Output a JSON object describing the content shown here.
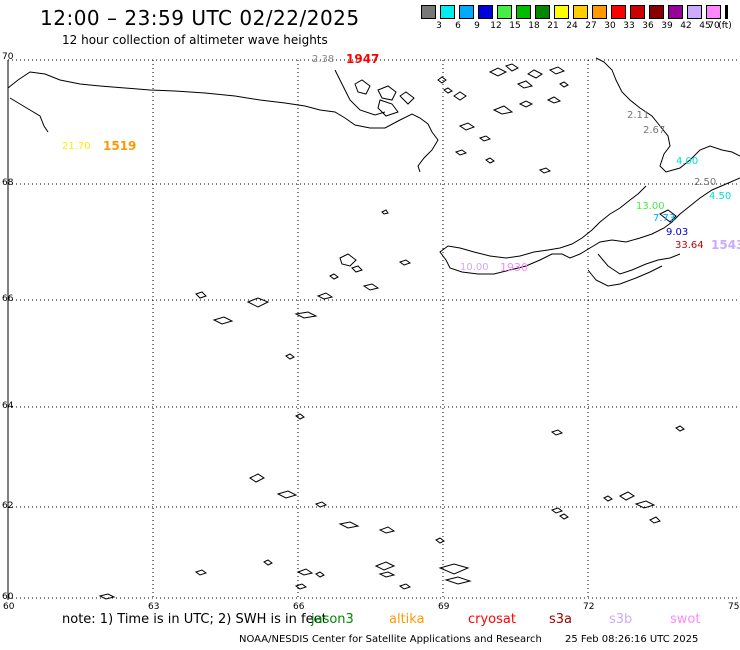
{
  "header": {
    "title": "12:00 – 23:59 UTC 02/22/2025",
    "subtitle": "12 hour collection of altimeter wave heights"
  },
  "legend": {
    "unit": "(ft)",
    "colors": [
      "#777777",
      "#00eeee",
      "#00aaff",
      "#0000dd",
      "#44ee44",
      "#00bb00",
      "#008800",
      "#ffff00",
      "#ffcc00",
      "#ff9900",
      "#ff0000",
      "#cc0000",
      "#880000",
      "#990099",
      "#ccaaff",
      "#ff88ff",
      "#000000"
    ],
    "labels": [
      "3",
      "6",
      "9",
      "12",
      "15",
      "18",
      "21",
      "24",
      "27",
      "30",
      "33",
      "36",
      "39",
      "42",
      "45",
      "70"
    ]
  },
  "axes": {
    "y_labels": [
      "70",
      "68",
      "66",
      "64",
      "62",
      "60"
    ],
    "x_labels": [
      "60",
      "63",
      "66",
      "69",
      "72",
      "75"
    ],
    "lat_range": [
      60,
      70
    ],
    "lon_range": [
      60,
      75
    ]
  },
  "wave_heights": [
    {
      "text": "2.38",
      "color": "#888888"
    },
    {
      "text": "21.70",
      "color": "#ffff00"
    },
    {
      "text": "2.11",
      "color": "#777777"
    },
    {
      "text": "2.67",
      "color": "#777777"
    },
    {
      "text": "4.00",
      "color": "#00dddd"
    },
    {
      "text": "2.50",
      "color": "#777777"
    },
    {
      "text": "4.50",
      "color": "#00dddd"
    },
    {
      "text": "13.00",
      "color": "#44ee44"
    },
    {
      "text": "7.73",
      "color": "#00aaff"
    },
    {
      "text": "9.03",
      "color": "#0000cc"
    },
    {
      "text": "33.64",
      "color": "#cc0000"
    },
    {
      "text": "10.00",
      "color": "#ccaaff"
    }
  ],
  "pass_times": [
    {
      "text": "1947",
      "color": "#ff0000"
    },
    {
      "text": "1519",
      "color": "#ff9900"
    },
    {
      "text": "1543",
      "color": "#ccaaff"
    },
    {
      "text": "1930",
      "color": "#ff88ff"
    }
  ],
  "footer": {
    "note": "note:  1) Time is in UTC;  2) SWH is in feet",
    "satellites": [
      {
        "name": "jason3",
        "color": "#008800"
      },
      {
        "name": "altika",
        "color": "#ff9900"
      },
      {
        "name": "cryosat",
        "color": "#ff0000"
      },
      {
        "name": "s3a",
        "color": "#990000"
      },
      {
        "name": "s3b",
        "color": "#ccaaff"
      },
      {
        "name": "swot",
        "color": "#ff88ff"
      }
    ],
    "credit": "NOAA/NESDIS Center for Satellite Applications and Research",
    "timestamp": "25 Feb 08:26:16 UTC 2025"
  }
}
